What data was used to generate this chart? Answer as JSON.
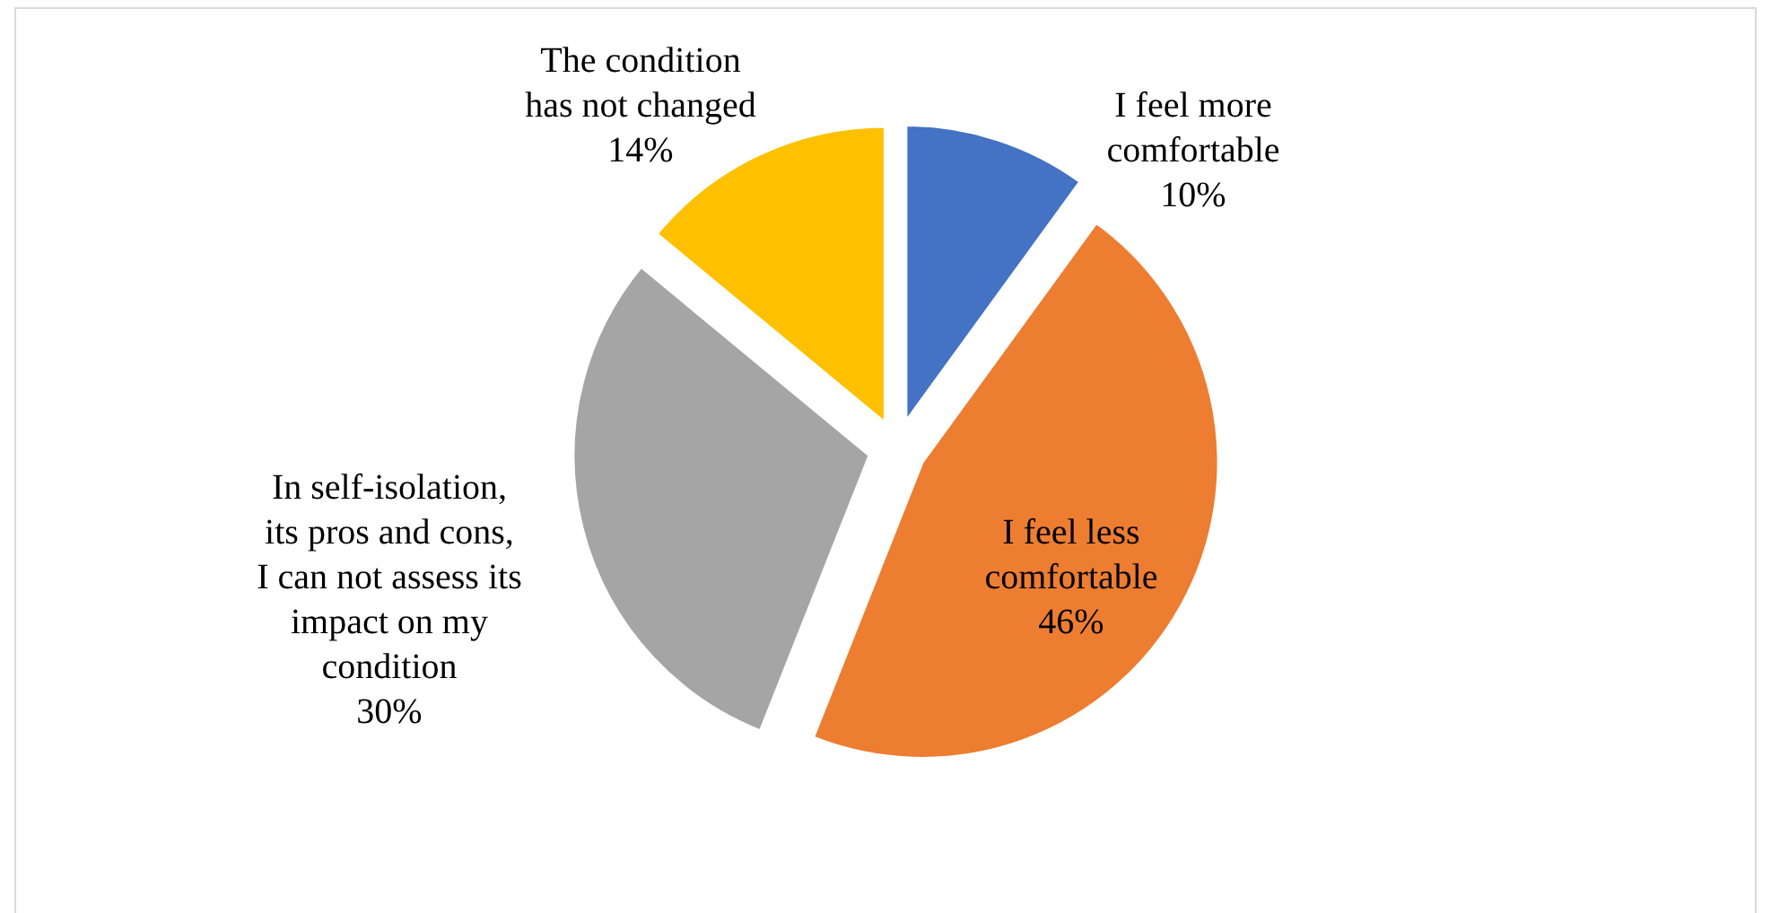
{
  "chart_data": {
    "type": "pie",
    "categories": [
      "I feel more comfortable",
      "I feel less comfortable",
      "In self-isolation, its pros and cons, I can not assess its impact on my condition",
      "The condition has not changed"
    ],
    "values": [
      10,
      46,
      30,
      14
    ],
    "colors": [
      "#4472c4",
      "#ed7d31",
      "#a5a5a5",
      "#ffc000"
    ],
    "value_labels": [
      "10%",
      "46%",
      "30%",
      "14%"
    ]
  }
}
